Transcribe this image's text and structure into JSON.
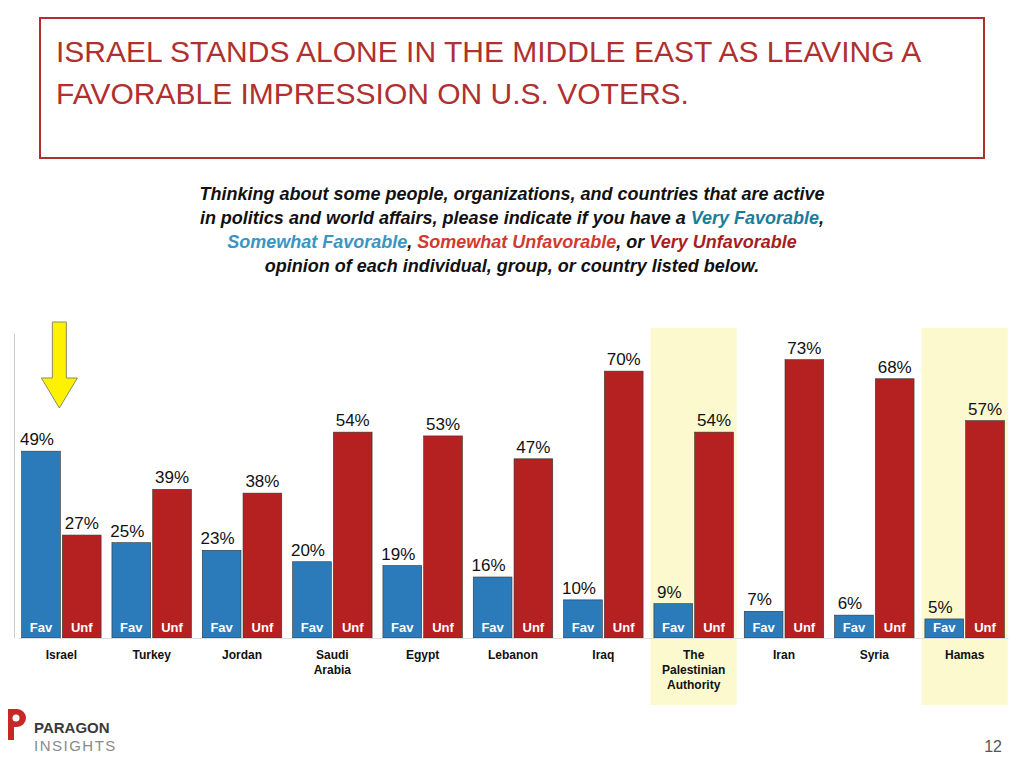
{
  "chart_data": {
    "type": "bar",
    "title": "ISRAEL STANDS ALONE IN THE MIDDLE EAST AS LEAVING A FAVORABLE IMPRESSION ON U.S. VOTERS.",
    "subtitle": [
      [
        {
          "text": "Thinking about some people, organizations, and countries that are active"
        }
      ],
      [
        {
          "text": "in politics and world affairs, please indicate if you have a "
        },
        {
          "text": "Very Favorable",
          "color": "#1b7d9a"
        },
        {
          "text": ","
        }
      ],
      [
        {
          "text": "Somewhat Favorable",
          "color": "#3a95c4"
        },
        {
          "text": ", "
        },
        {
          "text": "Somewhat Unfavorable",
          "color": "#d23a2e"
        },
        {
          "text": ", or "
        },
        {
          "text": "Very Unfavorable",
          "color": "#a81e1e"
        }
      ],
      [
        {
          "text": "opinion of each individual, group, or country listed below."
        }
      ]
    ],
    "categories": [
      "Israel",
      "Turkey",
      "Jordan",
      "Saudi Arabia",
      "Egypt",
      "Lebanon",
      "Iraq",
      "The Palestinian Authority",
      "Iran",
      "Syria",
      "Hamas"
    ],
    "series": [
      {
        "name": "Fav",
        "color": "#2b7bba",
        "values": [
          49,
          25,
          23,
          20,
          19,
          16,
          10,
          9,
          7,
          6,
          5
        ],
        "value_labels": [
          "49%",
          "25%",
          "23%",
          "20%",
          "19%",
          "16%",
          "10%",
          "9%",
          "7%",
          "6%",
          "5%"
        ]
      },
      {
        "name": "Unf",
        "color": "#b52121",
        "values": [
          27,
          39,
          38,
          54,
          53,
          47,
          70,
          54,
          73,
          68,
          57
        ],
        "value_labels": [
          "27%",
          "39%",
          "38%",
          "54%",
          "53%",
          "47%",
          "70%",
          "54%",
          "73%",
          "68%",
          "57%"
        ]
      }
    ],
    "ylim": [
      0,
      80
    ],
    "tick_labels": "x",
    "data_labels": true,
    "highlight": [
      "The Palestinian Authority",
      "Hamas"
    ],
    "logo": [
      "PARAGON",
      "INSIGHTS"
    ],
    "page_number": 12
  }
}
